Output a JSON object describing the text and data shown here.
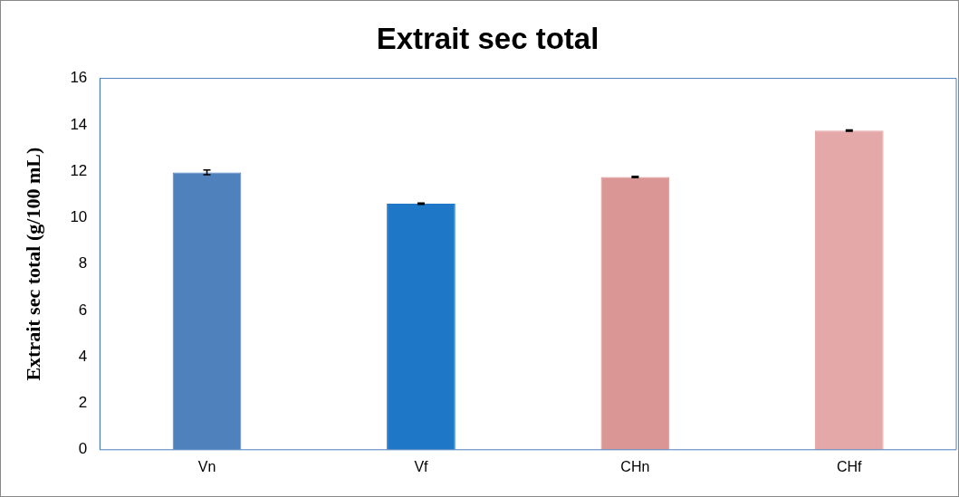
{
  "chart_data": {
    "type": "bar",
    "title": "Extrait sec total",
    "ylabel": "Extrait sec total (g/100 mL)",
    "categories": [
      "Vn",
      "Vf",
      "CHn",
      "CHf"
    ],
    "values": [
      11.95,
      10.6,
      11.75,
      13.75
    ],
    "colors": [
      "#4f81bd",
      "#1f77c8",
      "#d99694",
      "#e3a8a7"
    ],
    "errors": [
      0.1,
      0.03,
      0.03,
      0.03
    ],
    "ylim": [
      0,
      16
    ],
    "yticks": [
      0,
      2,
      4,
      6,
      8,
      10,
      12,
      14,
      16
    ],
    "grid": false,
    "legend": false
  }
}
